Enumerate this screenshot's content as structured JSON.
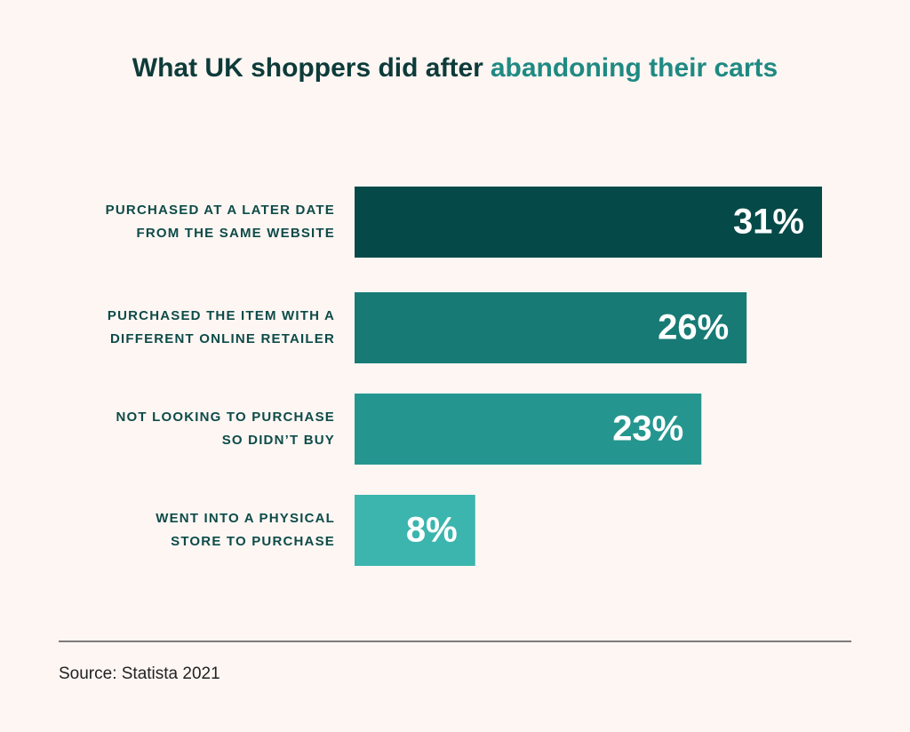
{
  "chart_data": {
    "type": "bar",
    "orientation": "horizontal",
    "title": "What UK shoppers did after",
    "title_highlight": "abandoning their carts",
    "categories": [
      [
        "PURCHASED AT A LATER DATE",
        "FROM THE SAME WEBSITE"
      ],
      [
        "PURCHASED THE ITEM WITH A",
        "DIFFERENT ONLINE RETAILER"
      ],
      [
        "NOT LOOKING TO PURCHASE",
        "SO DIDN’T BUY"
      ],
      [
        "WENT INTO A PHYSICAL",
        "STORE TO PURCHASE"
      ]
    ],
    "values": [
      31,
      26,
      23,
      8
    ],
    "value_labels": [
      "31%",
      "26%",
      "23%",
      "8%"
    ],
    "colors": [
      "#054a48",
      "#177a75",
      "#25968f",
      "#3bb5ad"
    ],
    "source": "Source: Statista 2021"
  }
}
